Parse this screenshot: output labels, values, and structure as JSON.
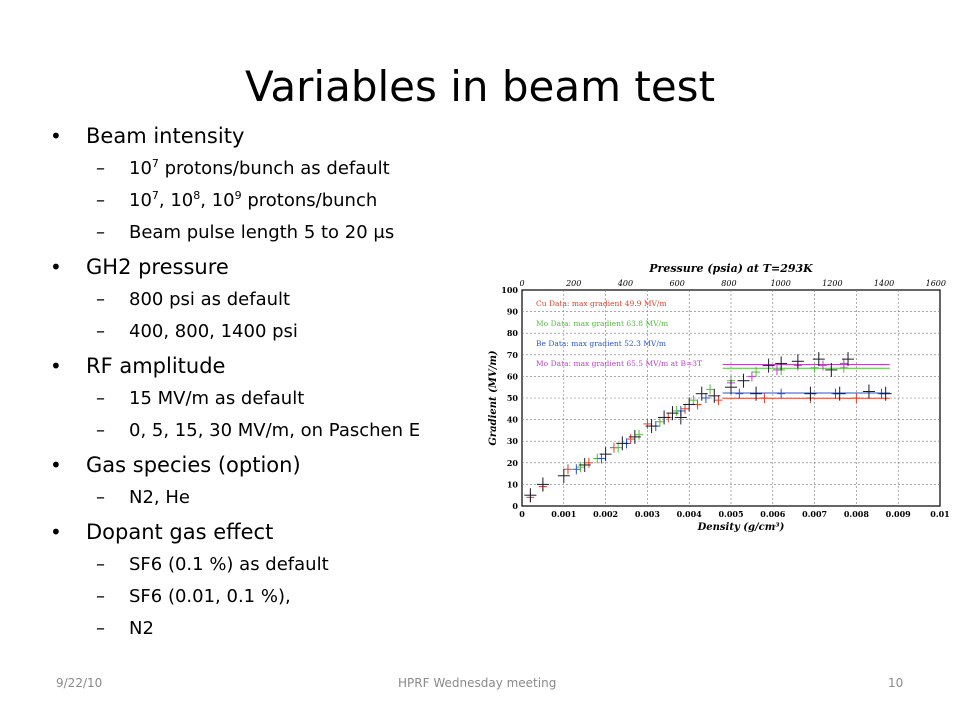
{
  "slide": {
    "title": "Variables in beam test",
    "footer": {
      "date": "9/22/10",
      "meeting": "HPRF Wednesday meeting",
      "page": "10"
    }
  },
  "bullets": [
    {
      "text": "Beam intensity",
      "subs": [
        {
          "parts": [
            {
              "t": "10"
            },
            {
              "sup": "7"
            },
            {
              "t": " protons/bunch as default"
            }
          ]
        },
        {
          "parts": [
            {
              "t": "10"
            },
            {
              "sup": "7"
            },
            {
              "t": ", 10"
            },
            {
              "sup": "8"
            },
            {
              "t": ", 10"
            },
            {
              "sup": "9"
            },
            {
              "t": " protons/bunch"
            }
          ]
        },
        {
          "parts": [
            {
              "t": "Beam pulse length 5 to 20 μs"
            }
          ]
        }
      ]
    },
    {
      "text": "GH2 pressure",
      "subs": [
        {
          "parts": [
            {
              "t": "800 psi as default"
            }
          ]
        },
        {
          "parts": [
            {
              "t": "400, 800, 1400 psi"
            }
          ]
        }
      ]
    },
    {
      "text": "RF amplitude",
      "subs": [
        {
          "parts": [
            {
              "t": "15 MV/m as default"
            }
          ]
        },
        {
          "parts": [
            {
              "t": "0, 5, 15, 30 MV/m, on Paschen E"
            }
          ]
        }
      ]
    },
    {
      "text": "Gas species (option)",
      "subs": [
        {
          "parts": [
            {
              "t": "N2, He"
            }
          ]
        }
      ]
    },
    {
      "text": "Dopant gas effect",
      "subs": [
        {
          "parts": [
            {
              "t": "SF6 (0.1 %) as default"
            }
          ]
        },
        {
          "parts": [
            {
              "t": "SF6 (0.01, 0.1 %),"
            }
          ]
        },
        {
          "parts": [
            {
              "t": "N2"
            }
          ]
        }
      ]
    }
  ],
  "chart_data": {
    "type": "scatter",
    "title": "Pressure (psia) at T=293K",
    "xlabel": "Density (g/cm³)",
    "ylabel": "Gradient (MV/m)",
    "xlim": [
      0,
      0.01
    ],
    "ylim": [
      0,
      100
    ],
    "x_ticks": [
      "0",
      "0.001",
      "0.002",
      "0.003",
      "0.004",
      "0.005",
      "0.006",
      "0.007",
      "0.008",
      "0.009",
      "0.01"
    ],
    "y_ticks": [
      "0",
      "10",
      "20",
      "30",
      "40",
      "50",
      "60",
      "70",
      "80",
      "90",
      "100"
    ],
    "top_axis_ticks": [
      "0",
      "200",
      "400",
      "600",
      "800",
      "1000",
      "1200",
      "1400",
      "1600"
    ],
    "top_axis_max": 1600,
    "grid": true,
    "legend_placement": "top-left",
    "series": [
      {
        "name": "Cu Data: max gradient 49.9 MV/m",
        "color": "#e0402a",
        "plateau": 49.9,
        "points": [
          [
            0.0002,
            4
          ],
          [
            0.0005,
            9
          ],
          [
            0.0011,
            17
          ],
          [
            0.0016,
            20
          ],
          [
            0.0022,
            27
          ],
          [
            0.0026,
            31
          ],
          [
            0.003,
            38
          ],
          [
            0.0035,
            41
          ],
          [
            0.0039,
            45
          ],
          [
            0.0042,
            47
          ],
          [
            0.0047,
            49
          ],
          [
            0.0058,
            50
          ],
          [
            0.0069,
            50
          ],
          [
            0.008,
            50
          ]
        ]
      },
      {
        "name": "Mo Data: max gradient 63.8 MV/m",
        "color": "#4fbf3a",
        "plateau": 63.8,
        "points": [
          [
            0.0014,
            18
          ],
          [
            0.0018,
            22
          ],
          [
            0.0023,
            27
          ],
          [
            0.0028,
            33
          ],
          [
            0.0033,
            39
          ],
          [
            0.0037,
            44
          ],
          [
            0.0041,
            49
          ],
          [
            0.0045,
            54
          ],
          [
            0.005,
            58
          ],
          [
            0.0056,
            62
          ],
          [
            0.0062,
            63
          ],
          [
            0.007,
            64
          ],
          [
            0.0077,
            64
          ]
        ]
      },
      {
        "name": "Be Data: max gradient 52.3 MV/m",
        "color": "#2a55d0",
        "plateau": 52.3,
        "points": [
          [
            0.0013,
            17
          ],
          [
            0.0019,
            22
          ],
          [
            0.0025,
            29
          ],
          [
            0.0032,
            37
          ],
          [
            0.0038,
            44
          ],
          [
            0.0044,
            50
          ],
          [
            0.0052,
            52
          ],
          [
            0.0062,
            52
          ],
          [
            0.0075,
            52
          ],
          [
            0.0086,
            52
          ]
        ]
      },
      {
        "name": "Mo Data: max gradient 65.5 MV/m at B=3T",
        "color": "#c040c8",
        "plateau": 65.5,
        "points": [
          [
            0.005,
            57
          ],
          [
            0.0055,
            60
          ],
          [
            0.0061,
            63
          ],
          [
            0.0066,
            65
          ],
          [
            0.0072,
            65
          ],
          [
            0.0077,
            66
          ]
        ]
      },
      {
        "name": "",
        "color": "#1a1a2a",
        "points": [
          [
            0.0002,
            5
          ],
          [
            0.0005,
            10
          ],
          [
            0.001,
            14
          ],
          [
            0.0015,
            19
          ],
          [
            0.002,
            24
          ],
          [
            0.0024,
            29
          ],
          [
            0.0027,
            32
          ],
          [
            0.0031,
            37
          ],
          [
            0.0034,
            41
          ],
          [
            0.0036,
            43
          ],
          [
            0.0038,
            41
          ],
          [
            0.004,
            47
          ],
          [
            0.0043,
            52
          ],
          [
            0.0046,
            51
          ],
          [
            0.005,
            55
          ],
          [
            0.0053,
            58
          ],
          [
            0.0056,
            52
          ],
          [
            0.0059,
            65
          ],
          [
            0.0062,
            66
          ],
          [
            0.0066,
            67
          ],
          [
            0.0069,
            52
          ],
          [
            0.0071,
            68
          ],
          [
            0.0074,
            63
          ],
          [
            0.0076,
            52
          ],
          [
            0.0078,
            68
          ],
          [
            0.0083,
            53
          ],
          [
            0.0087,
            52
          ]
        ]
      }
    ]
  }
}
